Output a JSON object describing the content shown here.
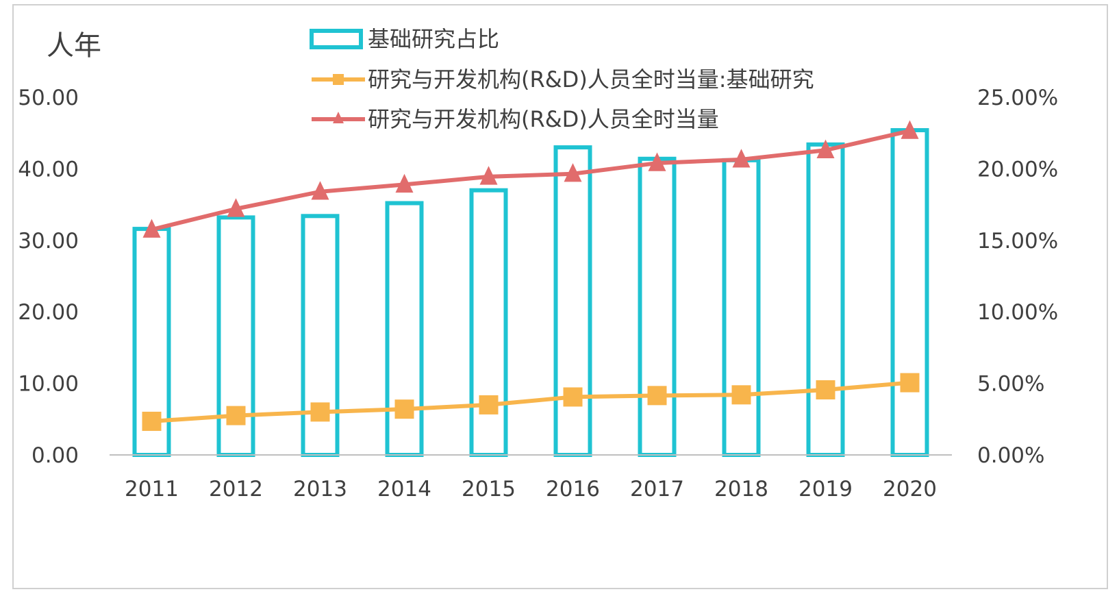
{
  "chart_data": {
    "type": "bar",
    "y_unit_label": "人年",
    "categories": [
      "2011",
      "2012",
      "2013",
      "2014",
      "2015",
      "2016",
      "2017",
      "2018",
      "2019",
      "2020"
    ],
    "y_left_ticks": [
      "0.00",
      "10.00",
      "20.00",
      "30.00",
      "40.00",
      "50.00"
    ],
    "y_right_ticks": [
      "0.00%",
      "5.00%",
      "10.00%",
      "15.00%",
      "20.00%",
      "25.00%"
    ],
    "ylim_left": [
      0,
      50
    ],
    "ylim_right": [
      0,
      0.25
    ],
    "grid": false,
    "legend_position": "top-center",
    "series": [
      {
        "name": "基础研究占比",
        "kind": "bar",
        "axis": "right",
        "color": "#1fc3d2",
        "values": [
          0.158,
          0.166,
          0.167,
          0.176,
          0.185,
          0.215,
          0.207,
          0.206,
          0.217,
          0.227
        ]
      },
      {
        "name": "研究与开发机构(R&D)人员全时当量:基础研究",
        "kind": "line",
        "marker": "square",
        "axis": "left",
        "color": "#f8b54c",
        "values": [
          4.7,
          5.5,
          6.0,
          6.4,
          7.0,
          8.1,
          8.3,
          8.4,
          9.1,
          10.1
        ]
      },
      {
        "name": "研究与开发机构(R&D)人员全时当量",
        "kind": "line",
        "marker": "triangle",
        "axis": "left",
        "color": "#e16c6c",
        "values": [
          31.5,
          34.4,
          36.8,
          37.8,
          38.9,
          39.3,
          40.8,
          41.3,
          42.6,
          45.3
        ]
      }
    ]
  }
}
